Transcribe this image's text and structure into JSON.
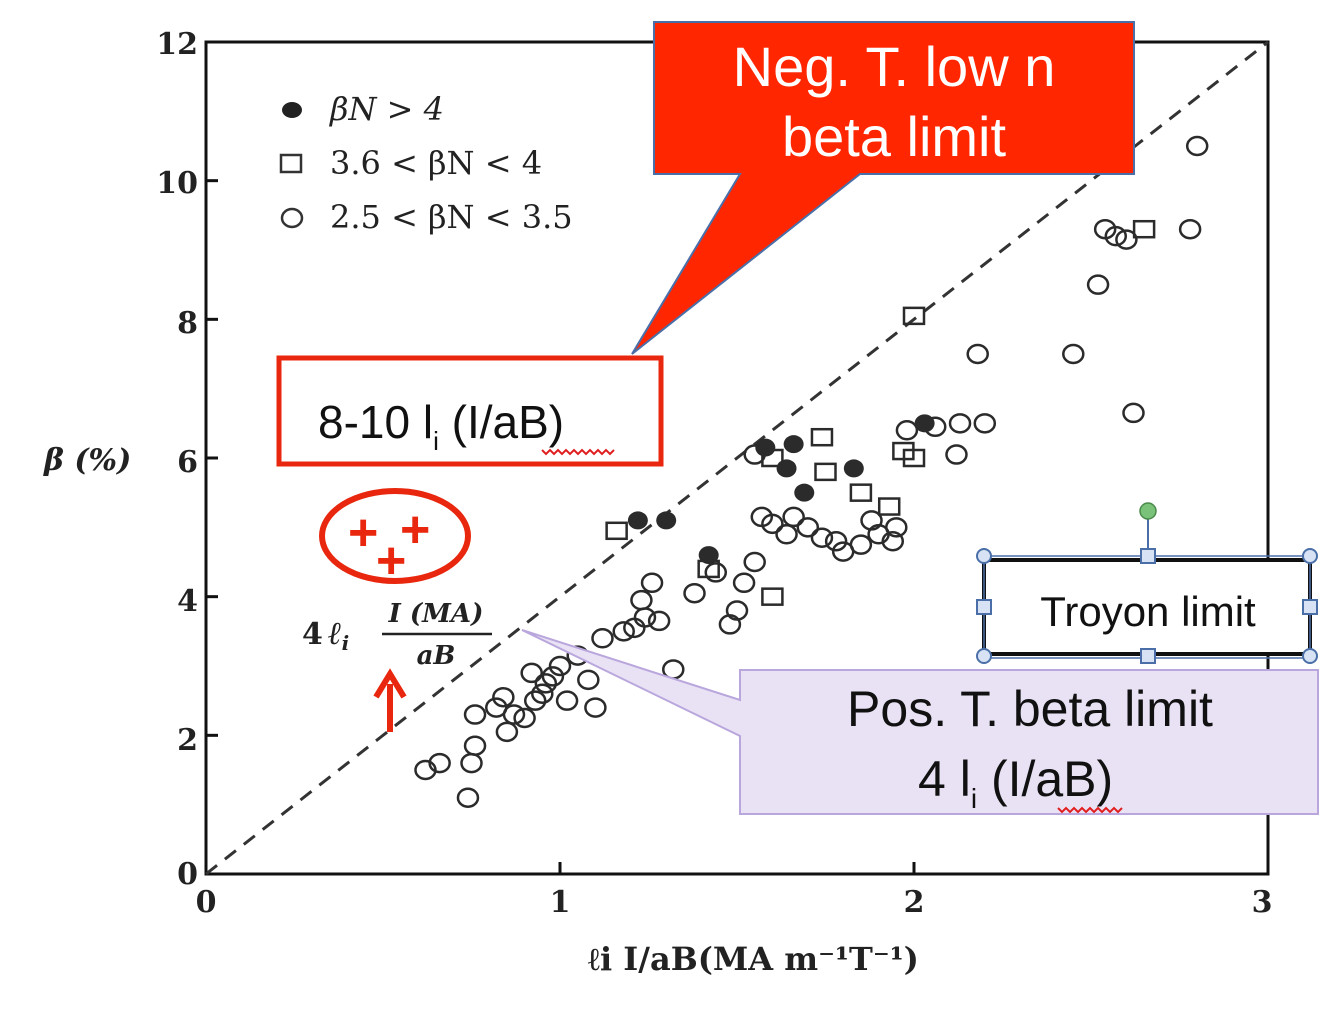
{
  "chart_data": {
    "type": "scatter",
    "xlabel": "ℓi I/aB(MA m⁻¹T⁻¹)",
    "ylabel": "β (%)",
    "xlim": [
      0,
      3
    ],
    "ylim": [
      0,
      12
    ],
    "x_ticks": [
      "0",
      "1",
      "2",
      "3"
    ],
    "y_ticks": [
      "0",
      "2",
      "4",
      "6",
      "8",
      "10",
      "12"
    ],
    "grid": false,
    "legend_position": "top-left",
    "legend": {
      "filled": "βN > 4",
      "square": "3.6 < βN < 4",
      "open": "2.5 < βN < 3.5"
    },
    "series": [
      {
        "name": "βN > 4",
        "marker": "filled-circle",
        "points": [
          [
            1.22,
            5.1
          ],
          [
            1.3,
            5.1
          ],
          [
            1.42,
            4.6
          ],
          [
            1.58,
            6.15
          ],
          [
            1.66,
            6.2
          ],
          [
            1.64,
            5.85
          ],
          [
            1.69,
            5.5
          ],
          [
            1.83,
            5.85
          ],
          [
            2.03,
            6.5
          ]
        ]
      },
      {
        "name": "3.6 < βN < 4",
        "marker": "open-square",
        "points": [
          [
            1.16,
            4.95
          ],
          [
            1.42,
            4.4
          ],
          [
            1.6,
            4.0
          ],
          [
            1.6,
            6.0
          ],
          [
            1.74,
            6.3
          ],
          [
            1.75,
            5.8
          ],
          [
            1.85,
            5.5
          ],
          [
            1.93,
            5.3
          ],
          [
            1.97,
            6.1
          ],
          [
            2.0,
            6.0
          ],
          [
            2.0,
            8.05
          ],
          [
            2.65,
            9.3
          ]
        ]
      },
      {
        "name": "2.5 < βN < 3.5",
        "marker": "open-circle",
        "points": [
          [
            0.62,
            1.5
          ],
          [
            0.66,
            1.6
          ],
          [
            0.74,
            1.1
          ],
          [
            0.75,
            1.6
          ],
          [
            0.76,
            1.85
          ],
          [
            0.76,
            2.3
          ],
          [
            0.82,
            2.4
          ],
          [
            0.84,
            2.55
          ],
          [
            0.85,
            2.05
          ],
          [
            0.87,
            2.3
          ],
          [
            0.9,
            2.25
          ],
          [
            0.92,
            2.9
          ],
          [
            0.93,
            2.5
          ],
          [
            0.95,
            2.6
          ],
          [
            0.96,
            2.75
          ],
          [
            0.98,
            2.85
          ],
          [
            1.0,
            3.0
          ],
          [
            1.02,
            2.5
          ],
          [
            1.05,
            3.15
          ],
          [
            1.08,
            2.8
          ],
          [
            1.1,
            2.4
          ],
          [
            1.12,
            3.4
          ],
          [
            1.18,
            3.5
          ],
          [
            1.21,
            3.55
          ],
          [
            1.23,
            3.95
          ],
          [
            1.24,
            3.7
          ],
          [
            1.26,
            4.2
          ],
          [
            1.28,
            3.65
          ],
          [
            1.32,
            2.95
          ],
          [
            1.38,
            4.05
          ],
          [
            1.44,
            4.35
          ],
          [
            1.48,
            3.6
          ],
          [
            1.5,
            3.8
          ],
          [
            1.52,
            4.2
          ],
          [
            1.55,
            4.5
          ],
          [
            1.55,
            6.05
          ],
          [
            1.57,
            5.15
          ],
          [
            1.6,
            5.05
          ],
          [
            1.64,
            4.9
          ],
          [
            1.66,
            5.15
          ],
          [
            1.7,
            5.0
          ],
          [
            1.74,
            4.85
          ],
          [
            1.78,
            4.8
          ],
          [
            1.8,
            4.65
          ],
          [
            1.85,
            4.75
          ],
          [
            1.88,
            5.1
          ],
          [
            1.9,
            4.9
          ],
          [
            1.94,
            4.8
          ],
          [
            1.95,
            5.0
          ],
          [
            1.98,
            6.4
          ],
          [
            2.06,
            6.45
          ],
          [
            2.12,
            6.05
          ],
          [
            2.13,
            6.5
          ],
          [
            2.18,
            7.5
          ],
          [
            2.2,
            6.5
          ],
          [
            2.45,
            7.5
          ],
          [
            2.52,
            8.5
          ],
          [
            2.54,
            9.3
          ],
          [
            2.57,
            9.2
          ],
          [
            2.6,
            9.15
          ],
          [
            2.62,
            6.65
          ],
          [
            2.78,
            9.3
          ],
          [
            2.8,
            10.5
          ]
        ]
      }
    ],
    "lines": [
      {
        "name": "Troyon limit",
        "style": "dashed",
        "slope": 4,
        "label": "4 ℓi I(MA)/aB"
      }
    ],
    "annotations": {
      "neg_title_line1": "Neg. T. low n",
      "neg_title_line2": "beta limit",
      "neg_formula_pre": "8-10 l",
      "neg_formula_sub": "i",
      "neg_formula_post": " (I/aB)",
      "pos_title": "Pos. T. beta limit",
      "pos_formula_pre": "4 l",
      "pos_formula_sub": "i",
      "pos_formula_post": " (I/aB)",
      "troyon_box": "Troyon limit",
      "line_label_coef": "4",
      "line_label_li": "ℓ",
      "line_label_li_sub": "i",
      "line_label_num": "I (MA)",
      "line_label_den": "aB",
      "plus_marks": [
        "+",
        "+",
        "+"
      ]
    },
    "colors": {
      "red": "#ff2600",
      "red_border": "#e8270e",
      "lavender_fill": "#e9e2f5",
      "lavender_border": "#b9a6dd",
      "axis": "#111111",
      "marker": "#2b2b2b",
      "handle_fill": "#d7e3f4",
      "handle_stroke": "#4a6fa8",
      "rotate_handle": "#7ac27a"
    }
  }
}
